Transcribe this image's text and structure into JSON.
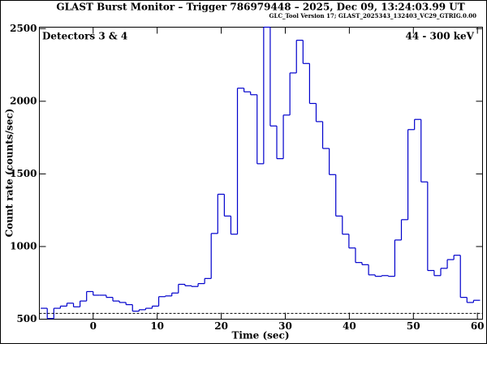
{
  "chart_data": {
    "type": "histogram",
    "title": "GLAST Burst Monitor  –  Trigger 786979448  –  2025, Dec 09, 13:24:03.99 UT",
    "subtitle": "GLC_Tool Version 17; GLAST_2025343_132403_VC29_GTRIG.0.00",
    "annotations": [
      "Detectors 3 & 4",
      "44 - 300 keV"
    ],
    "x_label": "Time (sec)",
    "y_label": "Count rate (counts/sec)",
    "color": "#0000cc",
    "bins": [
      -8.192,
      -7.168,
      -6.144,
      -5.12,
      -4.096,
      -3.072,
      -2.048,
      -1.024,
      0,
      1.024,
      2.048,
      3.072,
      4.096,
      5.12,
      6.144,
      7.168,
      8.192,
      9.216,
      10.24,
      11.264,
      12.288,
      13.312,
      14.336,
      15.36,
      16.384,
      17.408,
      18.432,
      19.456,
      20.48,
      21.504,
      22.528,
      23.552,
      24.576,
      25.6,
      26.624,
      27.648,
      28.672,
      29.696,
      30.72,
      31.744,
      32.768,
      33.792,
      34.816,
      35.84,
      36.864,
      37.888,
      38.912,
      39.936,
      40.96,
      41.984,
      43.008,
      44.032,
      45.056,
      46.08,
      47.104,
      48.128,
      49.152,
      50.176,
      51.2,
      52.224,
      53.248,
      54.272,
      55.296,
      56.32,
      57.344,
      58.368,
      59.392,
      60.416
    ],
    "values": [
      575,
      505,
      575,
      590,
      610,
      585,
      625,
      690,
      665,
      665,
      650,
      625,
      615,
      600,
      555,
      565,
      575,
      590,
      655,
      660,
      680,
      740,
      730,
      725,
      745,
      780,
      1090,
      1360,
      1210,
      1085,
      2090,
      2065,
      2045,
      1570,
      2510,
      1830,
      1605,
      1905,
      2195,
      2420,
      2260,
      1985,
      1860,
      1675,
      1495,
      1210,
      1085,
      990,
      890,
      875,
      805,
      795,
      800,
      795,
      1045,
      1185,
      1805,
      1875,
      1445,
      835,
      800,
      850,
      910,
      940,
      650,
      615,
      630
    ],
    "background_level": 540,
    "xlim": [
      -8.4,
      60.8
    ],
    "ylim": [
      500,
      2510
    ],
    "xticks": [
      0,
      10,
      20,
      30,
      40,
      50,
      60
    ],
    "yticks": [
      500,
      1000,
      1500,
      2000,
      2500
    ]
  }
}
